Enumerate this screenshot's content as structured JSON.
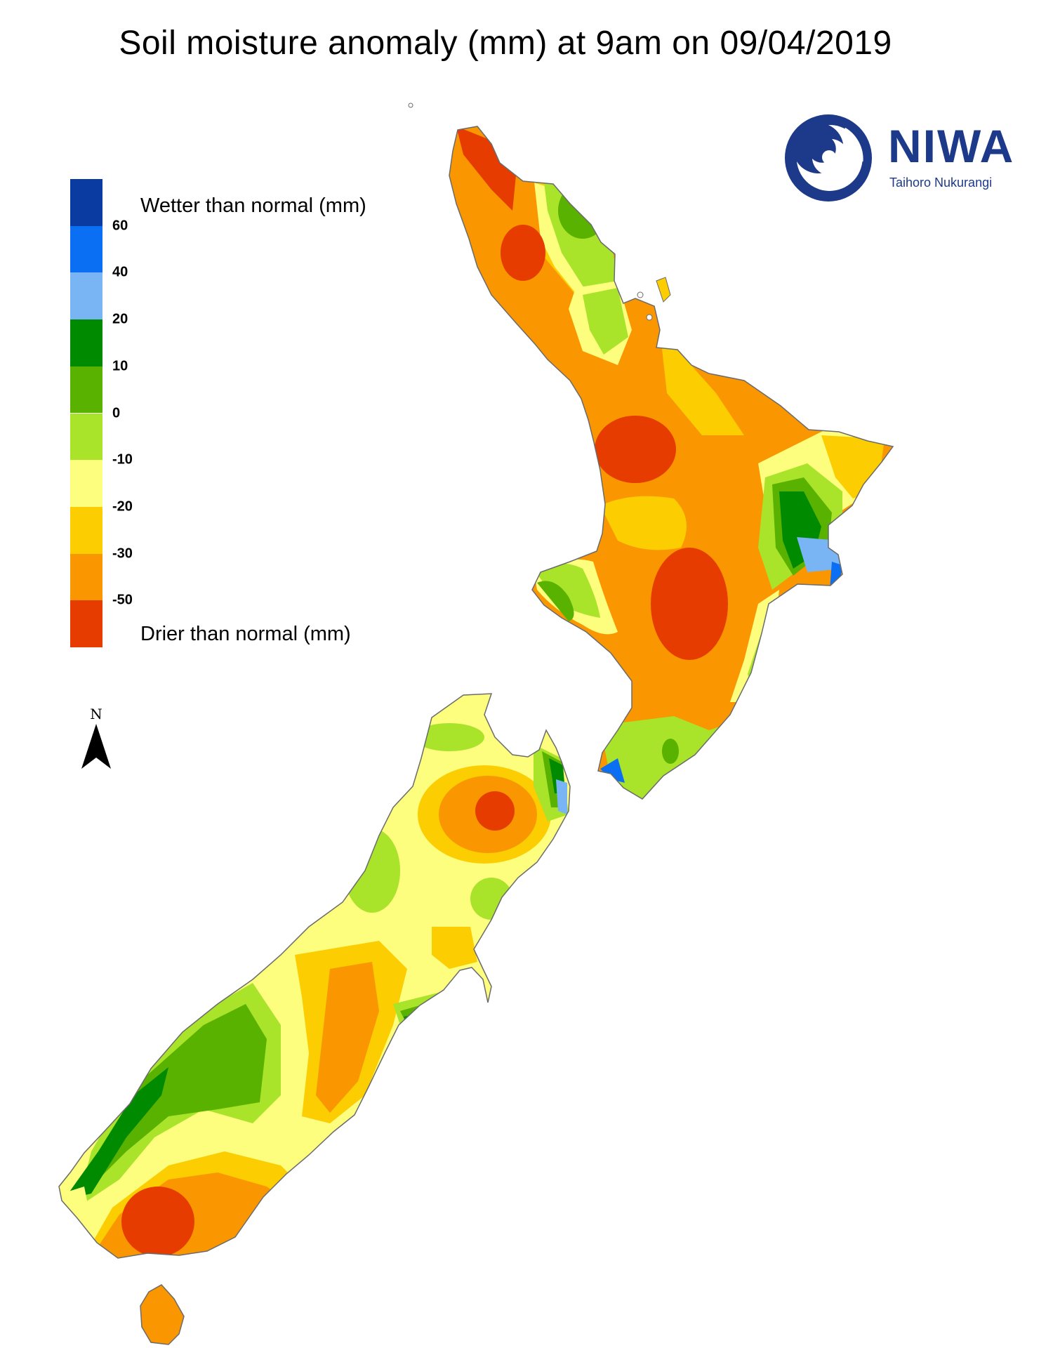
{
  "title": "Soil moisture anomaly (mm) at 9am on 09/04/2019",
  "legend": {
    "wetter_label": "Wetter than normal (mm)",
    "drier_label": "Drier than normal (mm)",
    "ticks": [
      "60",
      "40",
      "20",
      "10",
      "0",
      "-10",
      "-20",
      "-30",
      "-50"
    ],
    "colors": [
      "#0a3ba0",
      "#0a6ff2",
      "#79b4f5",
      "#008a00",
      "#5ab200",
      "#a9e32a",
      "#fdfd7e",
      "#fccd00",
      "#fa9600",
      "#e63c00"
    ]
  },
  "north_label": "N",
  "logo": {
    "name": "NIWA",
    "tagline": "Taihoro Nukurangi"
  },
  "map_colors": {
    "dark_red": "#e63c00",
    "orange": "#fa9600",
    "gold": "#fccd00",
    "pale_yellow": "#fdfd7e",
    "lime": "#a9e32a",
    "green": "#5ab200",
    "dark_green": "#008a00",
    "light_blue": "#79b4f5",
    "blue": "#0a6ff2",
    "coast": "#6b6b6b"
  }
}
